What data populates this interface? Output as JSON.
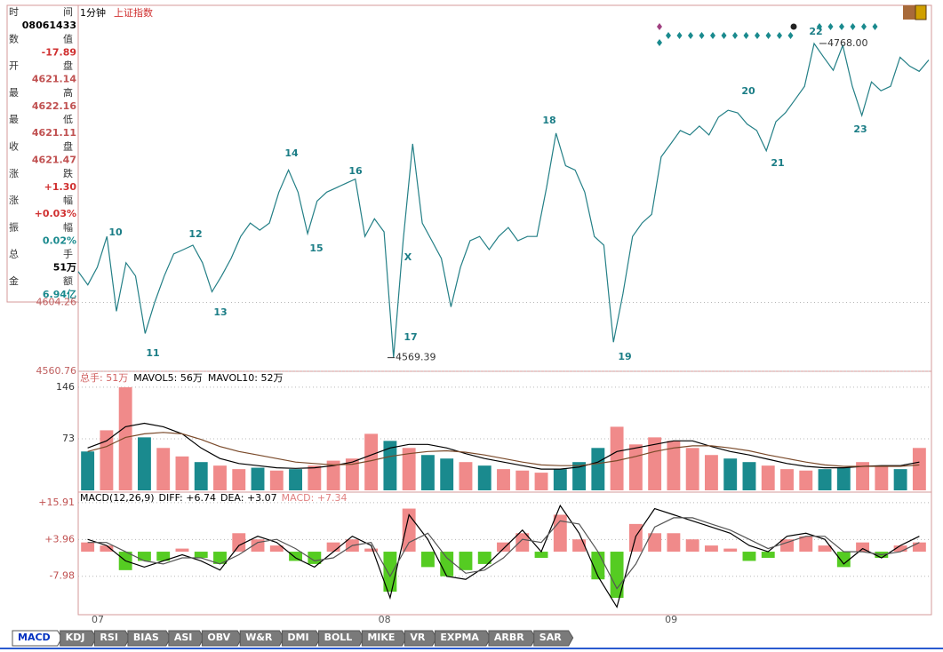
{
  "info_panel": {
    "rows": [
      {
        "label": "时间",
        "value": "08061433"
      },
      {
        "label": "数值",
        "value": "-17.89"
      },
      {
        "label": "开盘",
        "value": "4621.14"
      },
      {
        "label": "最高",
        "value": "4622.16"
      },
      {
        "label": "最低",
        "value": "4621.11"
      },
      {
        "label": "收盘",
        "value": "4621.47"
      },
      {
        "label": "涨跌",
        "value": "+1.30"
      },
      {
        "label": "涨幅",
        "value": "+0.03%"
      },
      {
        "label": "振幅",
        "value": "0.02%"
      },
      {
        "label": "总手",
        "value": "51万"
      },
      {
        "label": "金额",
        "value": "6.94亿"
      }
    ]
  },
  "tabs": [
    "MACD",
    "KDJ",
    "RSI",
    "BIAS",
    "ASI",
    "OBV",
    "W&R",
    "DMI",
    "BOLL",
    "MIKE",
    "VR",
    "EXPMA",
    "ARBR",
    "SAR"
  ],
  "chart_data": [
    {
      "type": "line",
      "title": "1分钟",
      "subtitle": "上证指数",
      "categories": [
        "07",
        null,
        null,
        null,
        null,
        null,
        null,
        null,
        null,
        null,
        null,
        null,
        null,
        null,
        null,
        null,
        null,
        null,
        null,
        null,
        null,
        null,
        null,
        null,
        null,
        null,
        null,
        null,
        null,
        null,
        "08",
        null,
        null,
        null,
        null,
        null,
        null,
        null,
        null,
        null,
        null,
        null,
        null,
        null,
        null,
        null,
        null,
        null,
        null,
        null,
        null,
        null,
        null,
        null,
        null,
        null,
        null,
        null,
        null,
        null,
        "09",
        null,
        null,
        null,
        null,
        null,
        null,
        null,
        null,
        null,
        null,
        null,
        null,
        null,
        null,
        null,
        null,
        null,
        null,
        null,
        null,
        null,
        null,
        null,
        null,
        null,
        null,
        null,
        null,
        null
      ],
      "series": [
        {
          "name": "上证指数",
          "color": "#237f86",
          "values": [
            4623.8,
            4615.4,
            4626.6,
            4646,
            4598.7,
            4629.4,
            4621,
            4584.7,
            4604.3,
            4621,
            4635,
            4637.7,
            4640.5,
            4629.4,
            4611,
            4621,
            4632.1,
            4646,
            4654.5,
            4650,
            4654.5,
            4674,
            4688,
            4674,
            4647.8,
            4668.4,
            4674,
            4676.8,
            4679.6,
            4682.3,
            4646,
            4657.2,
            4648.9,
            4569.39,
            4643.3,
            4704.6,
            4654.5,
            4643.3,
            4632.1,
            4601.5,
            4626.6,
            4643.3,
            4646,
            4637.7,
            4646,
            4651.7,
            4643.3,
            4646,
            4646,
            4676.8,
            4711.3,
            4690.7,
            4688,
            4674,
            4646,
            4640.5,
            4579.2,
            4609.8,
            4646,
            4654.5,
            4660,
            4696.3,
            4704.6,
            4713,
            4710.2,
            4715.8,
            4710.2,
            4721.4,
            4725.8,
            4724.2,
            4717,
            4713,
            4700.2,
            4718.6,
            4724.2,
            4732.5,
            4740.9,
            4768,
            4759.4,
            4751.1,
            4766.8,
            4740.9,
            4722.5,
            4743.7,
            4738.1,
            4740.9,
            4759.3,
            4753.7,
            4750.4,
            4757.6
          ]
        }
      ],
      "ylim": [
        4560.76,
        4791
      ],
      "yticks": [
        4604.26,
        4560.76
      ],
      "annotations": [
        "10",
        "11",
        "12",
        "13",
        "14",
        "15",
        "16",
        "17",
        "18",
        "19",
        "20",
        "21",
        "22",
        "23",
        "X"
      ],
      "price_labels": [
        4569.39,
        {
          "value": 4768,
          "label": "4768.00"
        }
      ]
    },
    {
      "type": "bar",
      "series": [
        {
          "name": "总手: 51万",
          "color": "#f08a8a",
          "down_color": "#1a8a8e",
          "values": [
            55,
            85,
            146,
            75,
            60,
            48,
            40,
            35,
            30,
            32,
            28,
            30,
            35,
            42,
            45,
            80,
            70,
            60,
            50,
            45,
            40,
            35,
            30,
            28,
            25,
            30,
            40,
            60,
            90,
            65,
            75,
            70,
            60,
            50,
            45,
            40,
            35,
            30,
            28,
            30,
            32,
            40,
            35,
            30,
            60
          ]
        },
        {
          "name": "MAVOL5: 56万",
          "color": "#000000",
          "values": [
            60,
            70,
            90,
            95,
            90,
            80,
            60,
            45,
            38,
            35,
            32,
            31,
            32,
            35,
            40,
            50,
            60,
            65,
            65,
            60,
            52,
            45,
            40,
            35,
            30,
            30,
            33,
            40,
            55,
            60,
            65,
            70,
            70,
            62,
            55,
            50,
            44,
            38,
            34,
            32,
            32,
            34,
            35,
            35,
            40
          ]
        },
        {
          "name": "MAVOL10: 52万",
          "color": "#7a4a2a",
          "values": [
            55,
            62,
            75,
            80,
            82,
            80,
            72,
            62,
            55,
            50,
            45,
            40,
            38,
            36,
            37,
            42,
            48,
            52,
            55,
            56,
            54,
            50,
            45,
            40,
            36,
            35,
            35,
            38,
            42,
            48,
            55,
            60,
            63,
            63,
            60,
            56,
            50,
            45,
            40,
            36,
            34,
            34,
            34,
            34,
            36
          ]
        }
      ],
      "ylim": [
        0,
        166
      ],
      "yticks": [
        146,
        73
      ]
    },
    {
      "type": "macd",
      "title": "MACD(12,26,9)",
      "series": [
        {
          "name": "DIFF: +6.74",
          "color": "#000000",
          "values": [
            4,
            2,
            -3,
            -5,
            -3,
            -1,
            -3,
            -6,
            2,
            5,
            3,
            -2,
            -5,
            0,
            5,
            2,
            -15,
            12,
            4,
            -8,
            -9,
            -5,
            1,
            7,
            0,
            15,
            6,
            -8,
            -18,
            5,
            14,
            12,
            10,
            8,
            6,
            2,
            0,
            5,
            6,
            4,
            -4,
            1,
            -2,
            2,
            5
          ]
        },
        {
          "name": "DEA: +3.07",
          "color": "#555555",
          "values": [
            3,
            3,
            0,
            -3,
            -4,
            -2,
            -2,
            -4,
            -1,
            3,
            4,
            1,
            -3,
            -2,
            2,
            3,
            -8,
            3,
            6,
            -2,
            -7,
            -6,
            -2,
            4,
            3,
            10,
            9,
            0,
            -12,
            -4,
            8,
            11,
            11,
            9,
            7,
            4,
            1,
            3,
            5,
            5,
            0,
            0,
            -1,
            0,
            3
          ]
        },
        {
          "name": "MACD: +7.34",
          "color": "#f08a8a",
          "down_color": "#55cc22",
          "values": [
            3,
            2,
            -6,
            -3,
            -3,
            1,
            -2,
            -4,
            6,
            4,
            2,
            -3,
            -4,
            3,
            4,
            1,
            -13,
            14,
            -5,
            -8,
            -6,
            -4,
            3,
            6,
            -2,
            12,
            4,
            -9,
            -15,
            9,
            6,
            6,
            4,
            2,
            1,
            -3,
            -2,
            4,
            5,
            2,
            -5,
            3,
            -2,
            2,
            3
          ]
        }
      ],
      "ylim": [
        -19.9,
        18.2
      ],
      "yticks": [
        {
          "value": 15.91,
          "label": "+15.91"
        },
        {
          "value": 3.96,
          "label": "+3.96"
        },
        -7.98
      ]
    }
  ]
}
